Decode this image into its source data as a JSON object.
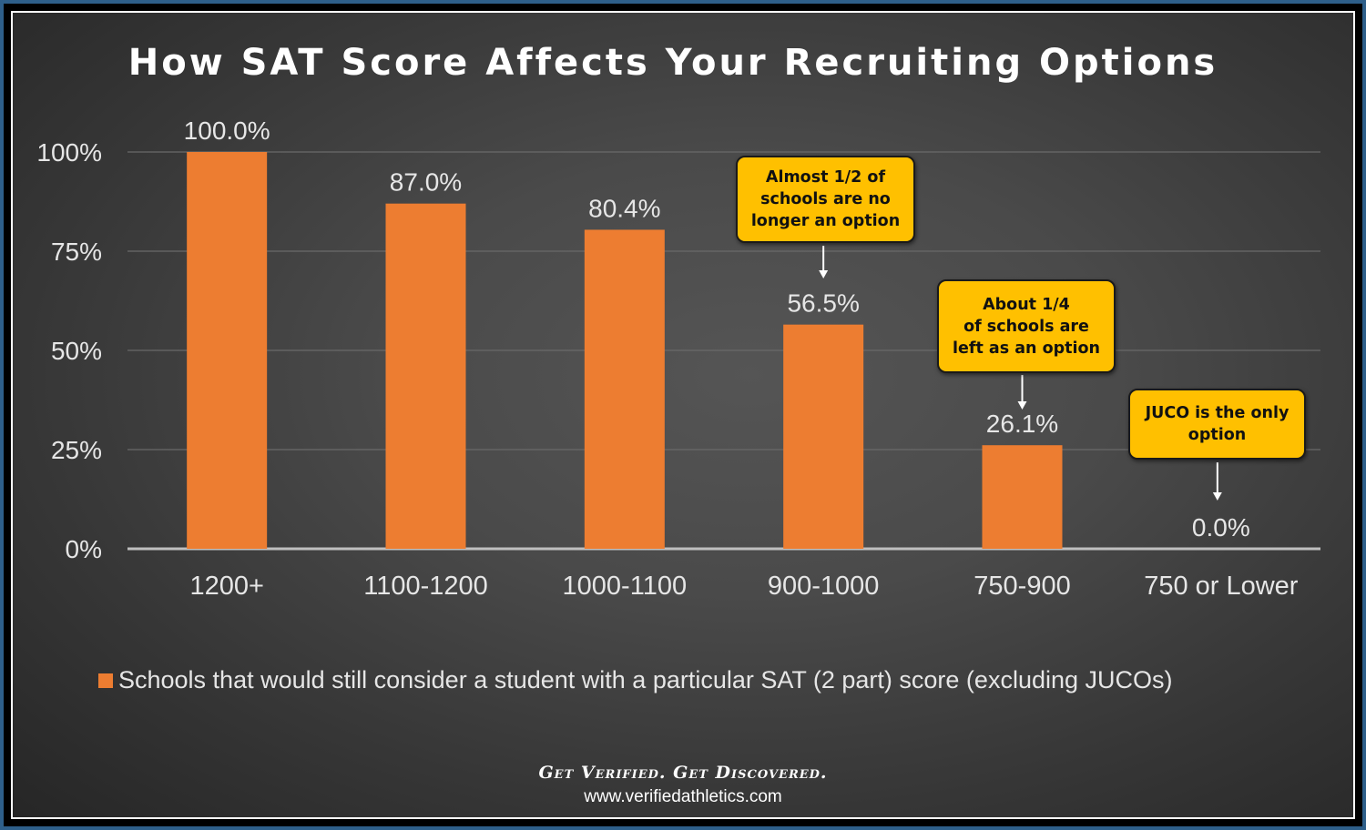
{
  "chart_data": {
    "type": "bar",
    "title": "How SAT Score Affects Your Recruiting Options",
    "categories": [
      "1200+",
      "1100-1200",
      "1000-1100",
      "900-1000",
      "750-900",
      "750 or Lower"
    ],
    "series": [
      {
        "name": "Schools that would still consider a student with a particular SAT (2 part) score (excluding JUCOs)",
        "values": [
          100.0,
          87.0,
          80.4,
          56.5,
          26.1,
          0.0
        ],
        "data_labels": [
          "100.0%",
          "87.0%",
          "80.4%",
          "56.5%",
          "26.1%",
          "0.0%"
        ],
        "color": "#ed7d31"
      }
    ],
    "ylim": [
      0,
      100
    ],
    "yticks": [
      0,
      25,
      50,
      75,
      100
    ],
    "ytick_labels": [
      "0%",
      "25%",
      "50%",
      "75%",
      "100%"
    ],
    "grid": true,
    "legend_position": "bottom",
    "annotations": [
      {
        "category": "900-1000",
        "text": "Almost 1/2 of schools are no longer an option"
      },
      {
        "category": "750-900",
        "text": "About 1/4 of schools are left as an option"
      },
      {
        "category": "750 or Lower",
        "text": "JUCO is the only option"
      }
    ]
  },
  "callouts": [
    {
      "line1": "Almost 1/2 of",
      "line2": "schools are no",
      "line3": "longer an option"
    },
    {
      "line1": "About 1/4",
      "line2": "of schools are",
      "line3": "left as an option"
    },
    {
      "line1": "JUCO is the only",
      "line2": "option"
    }
  ],
  "footer": {
    "tagline": "Get Verified. Get Discovered.",
    "website": "www.verifiedathletics.com"
  },
  "colors": {
    "bar": "#ed7d31",
    "callout_fill": "#ffc000",
    "background": "#4a4a4a",
    "text": "#e6e6e6"
  }
}
